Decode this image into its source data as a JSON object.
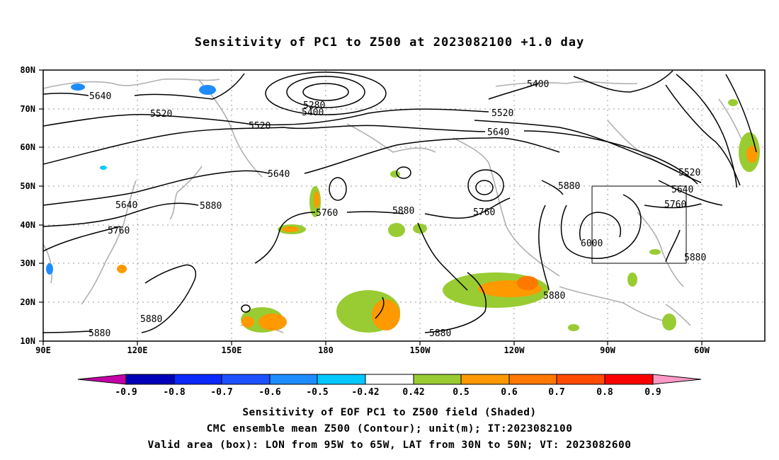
{
  "title": "Sensitivity of PC1 to Z500 at 2023082100 +1.0 day",
  "map": {
    "lon_labels": [
      "90E",
      "120E",
      "150E",
      "180",
      "150W",
      "120W",
      "90W",
      "60W"
    ],
    "lat_labels": [
      "80N",
      "70N",
      "60N",
      "50N",
      "40N",
      "30N",
      "20N",
      "10N"
    ],
    "contour_labels": [
      {
        "text": "5640"
      },
      {
        "text": "5520"
      },
      {
        "text": "5520"
      },
      {
        "text": "5280"
      },
      {
        "text": "5400"
      },
      {
        "text": "5400"
      },
      {
        "text": "5520"
      },
      {
        "text": "5640"
      },
      {
        "text": "5640"
      },
      {
        "text": "5640"
      },
      {
        "text": "5880"
      },
      {
        "text": "5760"
      },
      {
        "text": "5760"
      },
      {
        "text": "5880"
      },
      {
        "text": "5760"
      },
      {
        "text": "5880"
      },
      {
        "text": "5520"
      },
      {
        "text": "5640"
      },
      {
        "text": "5760"
      },
      {
        "text": "6000"
      },
      {
        "text": "5880"
      },
      {
        "text": "5880"
      },
      {
        "text": "5880"
      },
      {
        "text": "5880"
      },
      {
        "text": "5880"
      }
    ],
    "valid_box": {
      "lon_min": -95,
      "lon_max": -65,
      "lat_min": 30,
      "lat_max": 50
    },
    "colors": {
      "neg_09": "#c400a8",
      "neg_08": "#0000b8",
      "neg_07": "#0a28ff",
      "neg_06": "#1e50ff",
      "neg_05": "#1e8cff",
      "neg_042": "#00c8ff",
      "neutral": "#ffffff",
      "pos_042": "#99cc33",
      "pos_05": "#ff9900",
      "pos_06": "#ff7800",
      "pos_07": "#ff4a00",
      "pos_08": "#ff0000",
      "pos_09": "#ff99c8"
    }
  },
  "colorbar": {
    "labels": [
      "-0.9",
      "-0.8",
      "-0.7",
      "-0.6",
      "-0.5",
      "-0.42",
      "0.42",
      "0.5",
      "0.6",
      "0.7",
      "0.8",
      "0.9"
    ]
  },
  "captions": {
    "line1": "Sensitivity of EOF PC1 to Z500 field (Shaded)",
    "line2": "CMC ensemble mean Z500 (Contour); unit(m); IT:2023082100",
    "line3": "Valid area (box): LON from 95W to 65W, LAT from 30N to 50N; VT: 2023082600"
  }
}
